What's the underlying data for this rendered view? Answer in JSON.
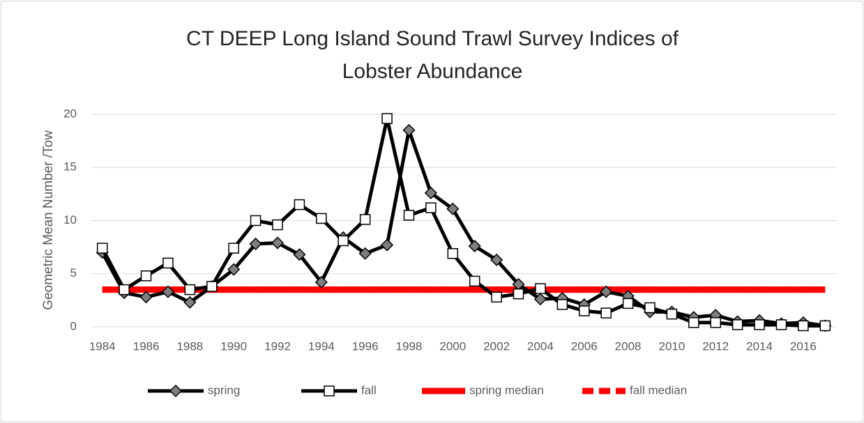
{
  "chart_data": {
    "type": "line",
    "title": "CT DEEP Long Island Sound Trawl Survey Indices of Lobster Abundance",
    "y_label": "Geometric Mean Number /Tow",
    "x": [
      1984,
      1985,
      1986,
      1987,
      1988,
      1989,
      1990,
      1991,
      1992,
      1993,
      1994,
      1995,
      1996,
      1997,
      1998,
      1999,
      2000,
      2001,
      2002,
      2003,
      2004,
      2005,
      2006,
      2007,
      2008,
      2009,
      2010,
      2011,
      2012,
      2013,
      2014,
      2015,
      2016,
      2017
    ],
    "xlim": [
      1983.5,
      2017.5
    ],
    "xticks": [
      1984,
      1986,
      1988,
      1990,
      1992,
      1994,
      1996,
      1998,
      2000,
      2002,
      2004,
      2006,
      2008,
      2010,
      2012,
      2014,
      2016
    ],
    "ylim": [
      0,
      20
    ],
    "yticks": [
      0,
      5,
      10,
      15,
      20
    ],
    "grid": true,
    "legend": "bottom",
    "series": [
      {
        "name": "spring",
        "color": "#000000",
        "marker": "diamond",
        "dashed": false,
        "values": [
          7.0,
          3.2,
          2.8,
          3.3,
          2.3,
          3.8,
          5.4,
          7.8,
          7.9,
          6.8,
          4.2,
          8.4,
          6.9,
          7.7,
          18.5,
          12.6,
          11.1,
          7.6,
          6.3,
          4.0,
          2.6,
          2.7,
          2.1,
          3.3,
          2.9,
          1.4,
          1.4,
          0.9,
          1.1,
          0.5,
          0.6,
          0.3,
          0.4,
          0.1
        ]
      },
      {
        "name": "fall",
        "color": "#000000",
        "marker": "square",
        "dashed": false,
        "values": [
          7.4,
          3.5,
          4.8,
          6.0,
          3.5,
          3.8,
          7.4,
          10.0,
          9.6,
          11.5,
          10.2,
          8.1,
          10.1,
          19.6,
          10.5,
          11.2,
          6.9,
          4.3,
          2.8,
          3.1,
          3.6,
          2.1,
          1.5,
          1.3,
          2.2,
          1.8,
          1.2,
          0.4,
          0.4,
          0.2,
          0.2,
          0.2,
          0.1,
          0.1
        ]
      },
      {
        "name": "spring median",
        "color": "#ff0000",
        "marker": "none",
        "dashed": false,
        "values": [
          3.5,
          3.5,
          3.5,
          3.5,
          3.5,
          3.5,
          3.5,
          3.5,
          3.5,
          3.5,
          3.5,
          3.5,
          3.5,
          3.5,
          3.5,
          3.5,
          3.5,
          3.5,
          3.5,
          3.5,
          3.5,
          3.5,
          3.5,
          3.5,
          3.5,
          3.5,
          3.5,
          3.5,
          3.5,
          3.5,
          3.5,
          3.5,
          3.5,
          3.5
        ]
      },
      {
        "name": "fall median",
        "color": "#ff0000",
        "marker": "none",
        "dashed": true,
        "values": [
          3.5,
          3.5,
          3.5,
          3.5,
          3.5,
          3.5,
          3.5,
          3.5,
          3.5,
          3.5,
          3.5,
          3.5,
          3.5,
          3.5,
          3.5,
          3.5,
          3.5,
          3.5,
          3.5,
          3.5,
          3.5,
          3.5,
          3.5,
          3.5,
          3.5,
          3.5,
          3.5,
          3.5,
          3.5,
          3.5,
          3.5,
          3.5,
          3.5,
          3.5
        ]
      }
    ]
  }
}
